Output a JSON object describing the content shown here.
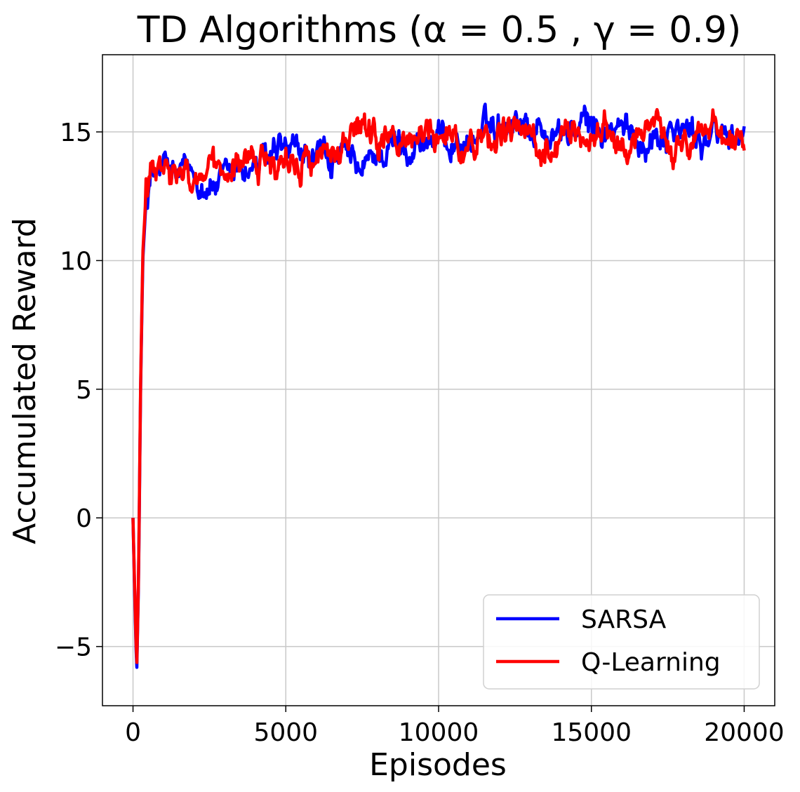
{
  "chart_data": {
    "type": "line",
    "title": "TD Algorithms (α = 0.5 , γ = 0.9)",
    "xlabel": "Episodes",
    "ylabel": "Accumulated Reward",
    "xlim": [
      -1000,
      21000
    ],
    "ylim": [
      -7.3,
      18.0
    ],
    "xticks": [
      0,
      5000,
      10000,
      15000,
      20000
    ],
    "xtick_labels": [
      "0",
      "5000",
      "10000",
      "15000",
      "20000"
    ],
    "yticks": [
      -5,
      0,
      5,
      10,
      15
    ],
    "ytick_labels": [
      "−5",
      "0",
      "5",
      "10",
      "15"
    ],
    "grid": true,
    "legend_position": "lower-right",
    "noise_amplitude": 0.9,
    "series": [
      {
        "name": "SARSA",
        "color": "#0000ff",
        "points": [
          [
            0,
            0
          ],
          [
            60,
            -3.2
          ],
          [
            120,
            -6.1
          ],
          [
            180,
            -2.5
          ],
          [
            250,
            5
          ],
          [
            320,
            10
          ],
          [
            420,
            12.3
          ],
          [
            600,
            13.2
          ],
          [
            1000,
            13.5
          ],
          [
            1500,
            13.2
          ],
          [
            2000,
            13.3
          ],
          [
            2500,
            13.0
          ],
          [
            3000,
            12.9
          ],
          [
            3500,
            13.5
          ],
          [
            4000,
            13.7
          ],
          [
            5000,
            14.0
          ],
          [
            6000,
            13.8
          ],
          [
            7000,
            13.9
          ],
          [
            7500,
            13.2
          ],
          [
            8000,
            14.2
          ],
          [
            9000,
            14.6
          ],
          [
            10000,
            14.7
          ],
          [
            11000,
            14.6
          ],
          [
            12000,
            15.4
          ],
          [
            12500,
            15.8
          ],
          [
            13000,
            15.2
          ],
          [
            14000,
            14.9
          ],
          [
            15000,
            15.2
          ],
          [
            16000,
            14.9
          ],
          [
            17000,
            14.8
          ],
          [
            17600,
            15.4
          ],
          [
            18000,
            14.9
          ],
          [
            19000,
            14.8
          ],
          [
            20000,
            15.0
          ]
        ]
      },
      {
        "name": "Q-Learning",
        "color": "#ff0000",
        "points": [
          [
            0,
            0
          ],
          [
            60,
            -3.0
          ],
          [
            120,
            -5.9
          ],
          [
            180,
            -2.3
          ],
          [
            250,
            5.2
          ],
          [
            320,
            10.2
          ],
          [
            420,
            12.5
          ],
          [
            600,
            13.5
          ],
          [
            1000,
            13.3
          ],
          [
            1500,
            13.0
          ],
          [
            2000,
            13.2
          ],
          [
            2500,
            13.3
          ],
          [
            3000,
            12.8
          ],
          [
            3500,
            13.4
          ],
          [
            4000,
            14.0
          ],
          [
            5000,
            14.0
          ],
          [
            6000,
            14.1
          ],
          [
            7000,
            14.3
          ],
          [
            7500,
            14.9
          ],
          [
            8000,
            14.4
          ],
          [
            9000,
            14.7
          ],
          [
            10000,
            15.1
          ],
          [
            11000,
            14.6
          ],
          [
            12000,
            15.0
          ],
          [
            13000,
            14.8
          ],
          [
            14000,
            14.7
          ],
          [
            15000,
            15.0
          ],
          [
            16000,
            14.8
          ],
          [
            17000,
            14.7
          ],
          [
            18000,
            14.8
          ],
          [
            19000,
            14.9
          ],
          [
            20000,
            15.0
          ]
        ]
      }
    ]
  }
}
